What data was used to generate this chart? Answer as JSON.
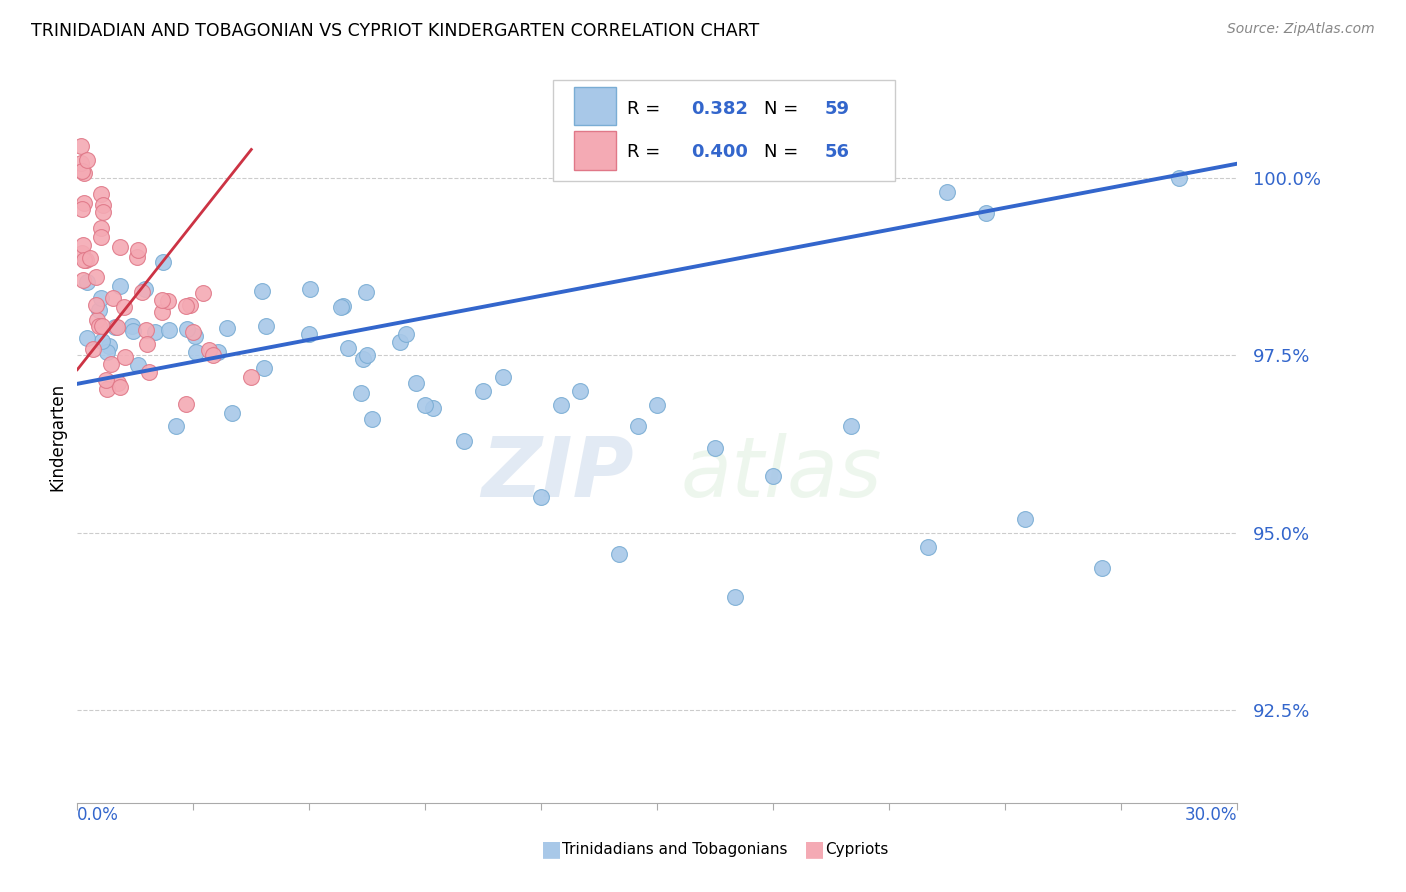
{
  "title": "TRINIDADIAN AND TOBAGONIAN VS CYPRIOT KINDERGARTEN CORRELATION CHART",
  "source": "Source: ZipAtlas.com",
  "ylabel": "Kindergarten",
  "yticks": [
    92.5,
    95.0,
    97.5,
    100.0
  ],
  "ytick_labels": [
    "92.5%",
    "95.0%",
    "97.5%",
    "100.0%"
  ],
  "xmin": 0.0,
  "xmax": 30.0,
  "ymin": 91.2,
  "ymax": 101.5,
  "legend_r_blue": "0.382",
  "legend_n_blue": "59",
  "legend_r_pink": "0.400",
  "legend_n_pink": "56",
  "watermark_zip": "ZIP",
  "watermark_atlas": "atlas",
  "blue_color": "#a8c8e8",
  "blue_edge_color": "#7aadd4",
  "pink_color": "#f4aaB4",
  "pink_edge_color": "#e07888",
  "blue_line_color": "#3366cc",
  "pink_line_color": "#cc3344",
  "legend_text_color": "#3366cc",
  "ytick_color": "#3366cc",
  "xtick_label_color": "#3366cc",
  "grid_color": "#cccccc",
  "source_color": "#888888"
}
